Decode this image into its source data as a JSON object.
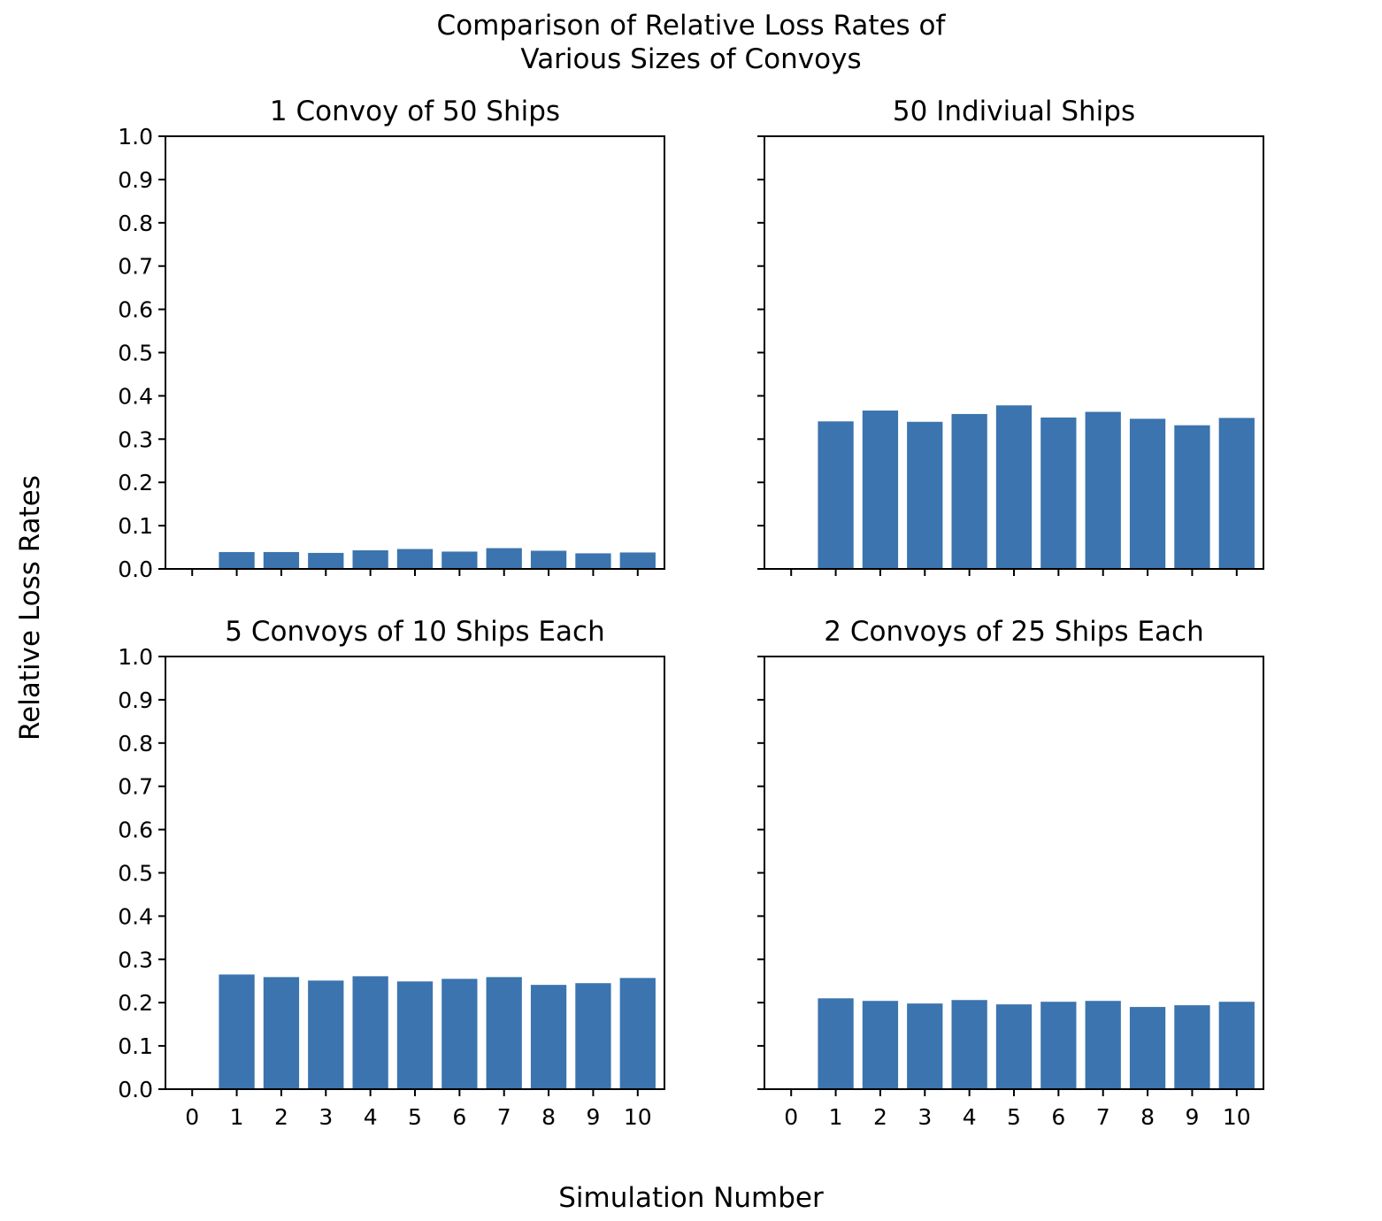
{
  "figure": {
    "title_line1": "Comparison of Relative Loss Rates of",
    "title_line2": "Various Sizes of Convoys",
    "xlabel": "Simulation Number",
    "ylabel": "Relative Loss Rates",
    "bar_color": "#3b74ae"
  },
  "chart_data": [
    {
      "type": "bar",
      "title": "1 Convoy of 50 Ships",
      "categories": [
        1,
        2,
        3,
        4,
        5,
        6,
        7,
        8,
        9,
        10
      ],
      "values": [
        0.039,
        0.039,
        0.037,
        0.043,
        0.046,
        0.04,
        0.048,
        0.042,
        0.036,
        0.038
      ],
      "xticks": [
        0,
        1,
        2,
        3,
        4,
        5,
        6,
        7,
        8,
        9,
        10
      ],
      "xlim": [
        -0.6,
        10.6
      ],
      "ylim": [
        0,
        1.0
      ],
      "yticks": [
        "0.0",
        "0.1",
        "0.2",
        "0.3",
        "0.4",
        "0.5",
        "0.6",
        "0.7",
        "0.8",
        "0.9",
        "1.0"
      ],
      "show_xticklabels": false,
      "show_yticklabels": true
    },
    {
      "type": "bar",
      "title": "50 Indiviual Ships",
      "categories": [
        1,
        2,
        3,
        4,
        5,
        6,
        7,
        8,
        9,
        10
      ],
      "values": [
        0.341,
        0.366,
        0.34,
        0.358,
        0.378,
        0.35,
        0.363,
        0.347,
        0.332,
        0.349
      ],
      "xticks": [
        0,
        1,
        2,
        3,
        4,
        5,
        6,
        7,
        8,
        9,
        10
      ],
      "xlim": [
        -0.6,
        10.6
      ],
      "ylim": [
        0,
        1.0
      ],
      "yticks": [
        "0.0",
        "0.1",
        "0.2",
        "0.3",
        "0.4",
        "0.5",
        "0.6",
        "0.7",
        "0.8",
        "0.9",
        "1.0"
      ],
      "show_xticklabels": false,
      "show_yticklabels": false
    },
    {
      "type": "bar",
      "title": "5 Convoys of 10 Ships Each",
      "categories": [
        1,
        2,
        3,
        4,
        5,
        6,
        7,
        8,
        9,
        10
      ],
      "values": [
        0.265,
        0.259,
        0.251,
        0.261,
        0.249,
        0.255,
        0.259,
        0.241,
        0.245,
        0.257
      ],
      "xticks": [
        0,
        1,
        2,
        3,
        4,
        5,
        6,
        7,
        8,
        9,
        10
      ],
      "xlim": [
        -0.6,
        10.6
      ],
      "ylim": [
        0,
        1.0
      ],
      "yticks": [
        "0.0",
        "0.1",
        "0.2",
        "0.3",
        "0.4",
        "0.5",
        "0.6",
        "0.7",
        "0.8",
        "0.9",
        "1.0"
      ],
      "show_xticklabels": true,
      "show_yticklabels": true
    },
    {
      "type": "bar",
      "title": "2 Convoys of 25 Ships Each",
      "categories": [
        1,
        2,
        3,
        4,
        5,
        6,
        7,
        8,
        9,
        10
      ],
      "values": [
        0.21,
        0.204,
        0.198,
        0.206,
        0.196,
        0.202,
        0.204,
        0.19,
        0.194,
        0.202
      ],
      "xticks": [
        0,
        1,
        2,
        3,
        4,
        5,
        6,
        7,
        8,
        9,
        10
      ],
      "xlim": [
        -0.6,
        10.6
      ],
      "ylim": [
        0,
        1.0
      ],
      "yticks": [
        "0.0",
        "0.1",
        "0.2",
        "0.3",
        "0.4",
        "0.5",
        "0.6",
        "0.7",
        "0.8",
        "0.9",
        "1.0"
      ],
      "show_xticklabels": true,
      "show_yticklabels": false
    }
  ]
}
